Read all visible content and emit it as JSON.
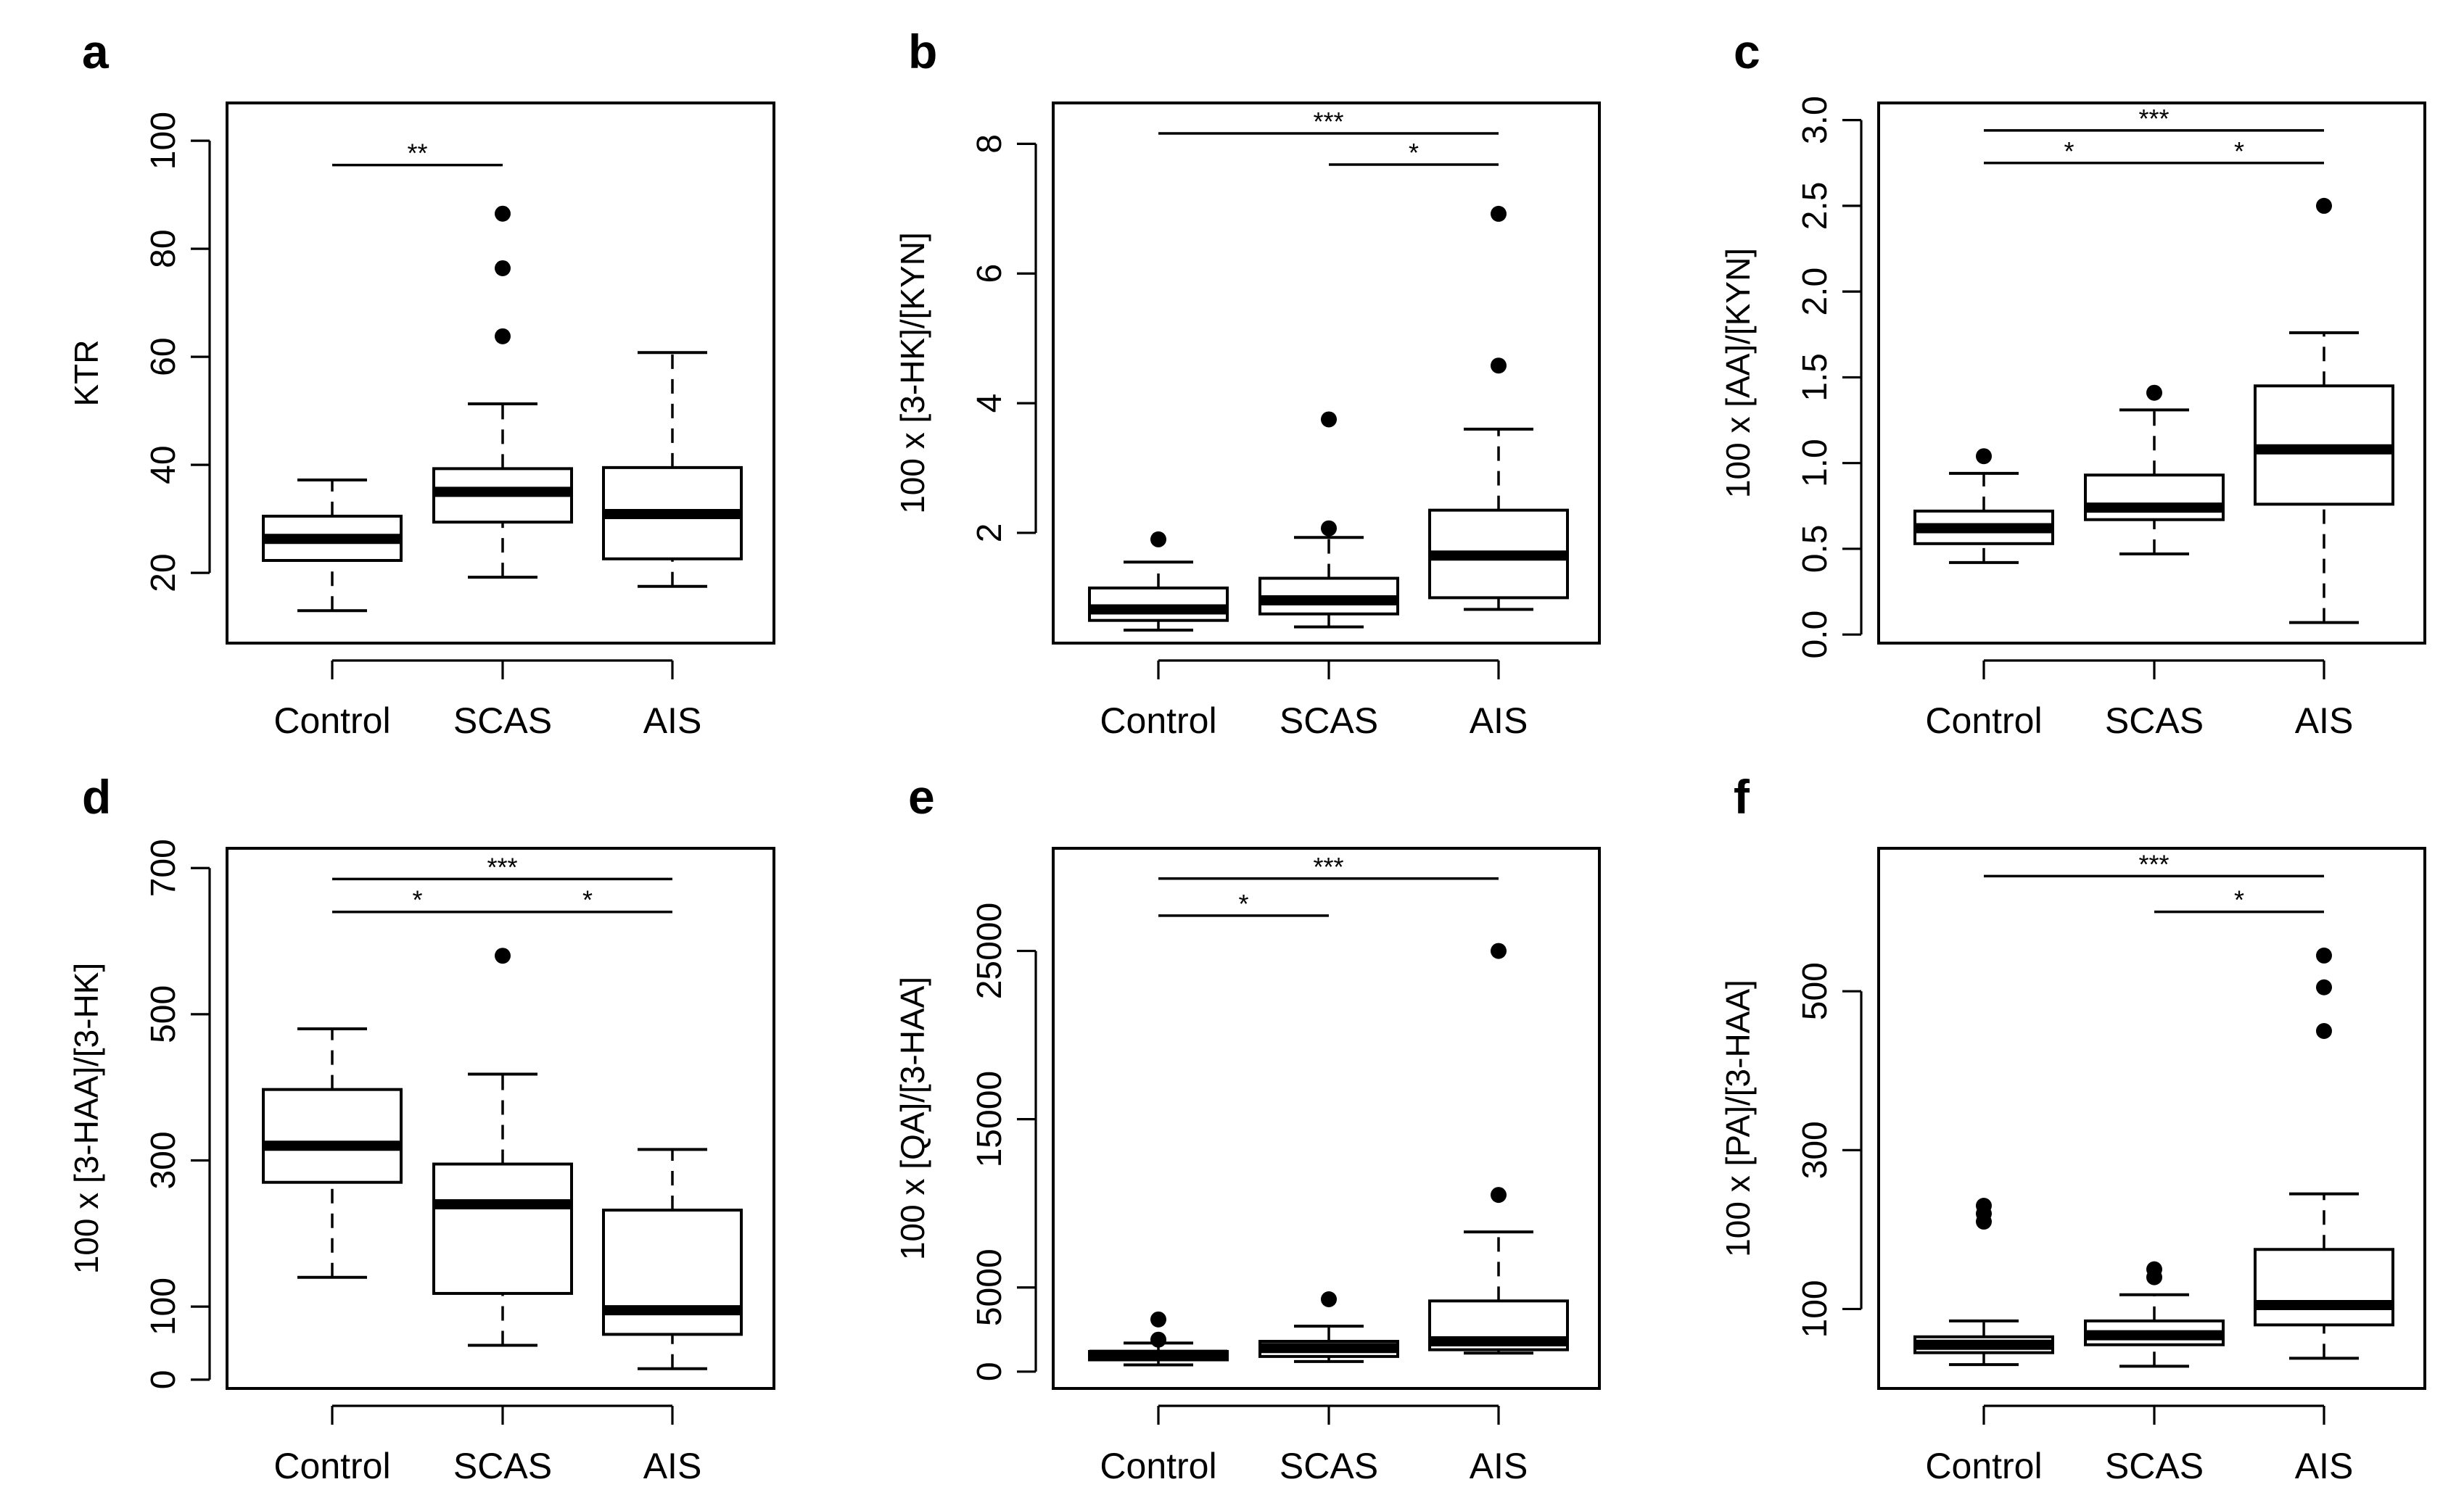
{
  "chart_data": [
    {
      "panel": "a",
      "type": "boxplot",
      "ylabel": "KTR",
      "categories": [
        "Control",
        "SCAS",
        "AIS"
      ],
      "ylim": [
        7,
        107
      ],
      "yticks": [
        20,
        40,
        60,
        80,
        100
      ],
      "boxes": [
        {
          "category": "Control",
          "whisker_low": 13,
          "q1": 22.3,
          "median": 26.3,
          "q3": 30.5,
          "whisker_high": 37.2,
          "outliers": []
        },
        {
          "category": "SCAS",
          "whisker_low": 19.2,
          "q1": 29.4,
          "median": 35,
          "q3": 39.3,
          "whisker_high": 51.3,
          "outliers": [
            63.8,
            76.4,
            86.5
          ]
        },
        {
          "category": "AIS",
          "whisker_low": 17.5,
          "q1": 22.6,
          "median": 30.9,
          "q3": 39.5,
          "whisker_high": 60.8,
          "outliers": []
        }
      ],
      "significance": [
        {
          "from": "Control",
          "to": "SCAS",
          "y": 95.5,
          "label": "**"
        }
      ]
    },
    {
      "panel": "b",
      "type": "boxplot",
      "ylabel": "100 x [3-HK]/[KYN]",
      "categories": [
        "Control",
        "SCAS",
        "AIS"
      ],
      "ylim": [
        0.3,
        8.63
      ],
      "yticks": [
        2,
        4,
        6,
        8
      ],
      "boxes": [
        {
          "category": "Control",
          "whisker_low": 0.5,
          "q1": 0.65,
          "median": 0.82,
          "q3": 1.15,
          "whisker_high": 1.55,
          "outliers": [
            1.9
          ]
        },
        {
          "category": "SCAS",
          "whisker_low": 0.55,
          "q1": 0.75,
          "median": 0.96,
          "q3": 1.3,
          "whisker_high": 1.93,
          "outliers": [
            2.07,
            3.75
          ]
        },
        {
          "category": "AIS",
          "whisker_low": 0.82,
          "q1": 1.0,
          "median": 1.65,
          "q3": 2.35,
          "whisker_high": 3.6,
          "outliers": [
            4.58,
            6.92
          ]
        }
      ],
      "significance": [
        {
          "from": "Control",
          "to": "AIS",
          "y": 8.16,
          "label": "***"
        },
        {
          "from": "SCAS",
          "to": "AIS",
          "y": 7.68,
          "label": "*"
        }
      ]
    },
    {
      "panel": "c",
      "type": "boxplot",
      "ylabel": "100 x [AA]/[KYN]",
      "categories": [
        "Control",
        "SCAS",
        "AIS"
      ],
      "ylim": [
        -0.05,
        3.1
      ],
      "yticks": [
        0.0,
        0.5,
        1.0,
        1.5,
        2.0,
        2.5,
        3.0
      ],
      "ytick_labels": [
        "0.0",
        "0.5",
        "1.0",
        "1.5",
        "2.0",
        "2.5",
        "3.0"
      ],
      "boxes": [
        {
          "category": "Control",
          "whisker_low": 0.42,
          "q1": 0.53,
          "median": 0.62,
          "q3": 0.72,
          "whisker_high": 0.94,
          "outliers": [
            1.04
          ]
        },
        {
          "category": "SCAS",
          "whisker_low": 0.47,
          "q1": 0.67,
          "median": 0.74,
          "q3": 0.93,
          "whisker_high": 1.31,
          "outliers": [
            1.41
          ]
        },
        {
          "category": "AIS",
          "whisker_low": 0.07,
          "q1": 0.76,
          "median": 1.08,
          "q3": 1.45,
          "whisker_high": 1.76,
          "outliers": [
            2.5
          ]
        }
      ],
      "significance": [
        {
          "from": "Control",
          "to": "AIS",
          "y": 2.94,
          "label": "***"
        },
        {
          "from": "Control",
          "to": "SCAS",
          "y": 2.75,
          "label": "*"
        },
        {
          "from": "SCAS",
          "to": "AIS",
          "y": 2.75,
          "label": "*"
        }
      ]
    },
    {
      "panel": "d",
      "type": "boxplot",
      "ylabel": "100 x [3-HAA]/[3-HK]",
      "categories": [
        "Control",
        "SCAS",
        "AIS"
      ],
      "ylim": [
        -12,
        727
      ],
      "yticks": [
        0,
        100,
        300,
        500,
        700
      ],
      "boxes": [
        {
          "category": "Control",
          "whisker_low": 140,
          "q1": 270,
          "median": 320,
          "q3": 397,
          "whisker_high": 480,
          "outliers": []
        },
        {
          "category": "SCAS",
          "whisker_low": 47,
          "q1": 118,
          "median": 240,
          "q3": 295,
          "whisker_high": 418,
          "outliers": [
            580
          ]
        },
        {
          "category": "AIS",
          "whisker_low": 15,
          "q1": 62,
          "median": 95,
          "q3": 232,
          "whisker_high": 315,
          "outliers": []
        }
      ],
      "significance": [
        {
          "from": "Control",
          "to": "AIS",
          "y": 685,
          "label": "***"
        },
        {
          "from": "Control",
          "to": "SCAS",
          "y": 640,
          "label": "*"
        },
        {
          "from": "SCAS",
          "to": "AIS",
          "y": 640,
          "label": "*"
        }
      ]
    },
    {
      "panel": "e",
      "type": "boxplot",
      "ylabel": "100 x [QA]/[3-HAA]",
      "categories": [
        "Control",
        "SCAS",
        "AIS"
      ],
      "ylim": [
        -1000,
        31100
      ],
      "yticks": [
        0,
        5000,
        15000,
        25000
      ],
      "boxes": [
        {
          "category": "Control",
          "whisker_low": 400,
          "q1": 700,
          "median": 1000,
          "q3": 1200,
          "whisker_high": 1700,
          "outliers": [
            1900,
            3100
          ]
        },
        {
          "category": "SCAS",
          "whisker_low": 600,
          "q1": 900,
          "median": 1400,
          "q3": 1800,
          "whisker_high": 2700,
          "outliers": [
            4300
          ]
        },
        {
          "category": "AIS",
          "whisker_low": 1100,
          "q1": 1300,
          "median": 1800,
          "q3": 4200,
          "whisker_high": 8300,
          "outliers": [
            10500,
            25000
          ]
        }
      ],
      "significance": [
        {
          "from": "Control",
          "to": "AIS",
          "y": 29300,
          "label": "***"
        },
        {
          "from": "Control",
          "to": "SCAS",
          "y": 27100,
          "label": "*"
        }
      ]
    },
    {
      "panel": "f",
      "type": "boxplot",
      "ylabel": "100 x [PA]/[3-HAA]",
      "categories": [
        "Control",
        "SCAS",
        "AIS"
      ],
      "ylim": [
        0,
        680
      ],
      "yticks": [
        100,
        300,
        500
      ],
      "boxes": [
        {
          "category": "Control",
          "whisker_low": 30,
          "q1": 45,
          "median": 55,
          "q3": 65,
          "whisker_high": 85,
          "outliers": [
            210,
            220,
            230
          ]
        },
        {
          "category": "SCAS",
          "whisker_low": 28,
          "q1": 55,
          "median": 67,
          "q3": 85,
          "whisker_high": 118,
          "outliers": [
            140,
            150
          ]
        },
        {
          "category": "AIS",
          "whisker_low": 38,
          "q1": 80,
          "median": 105,
          "q3": 175,
          "whisker_high": 245,
          "outliers": [
            450,
            505,
            545
          ]
        }
      ],
      "significance": [
        {
          "from": "Control",
          "to": "AIS",
          "y": 645,
          "label": "***"
        },
        {
          "from": "SCAS",
          "to": "AIS",
          "y": 600,
          "label": "*"
        }
      ]
    }
  ]
}
